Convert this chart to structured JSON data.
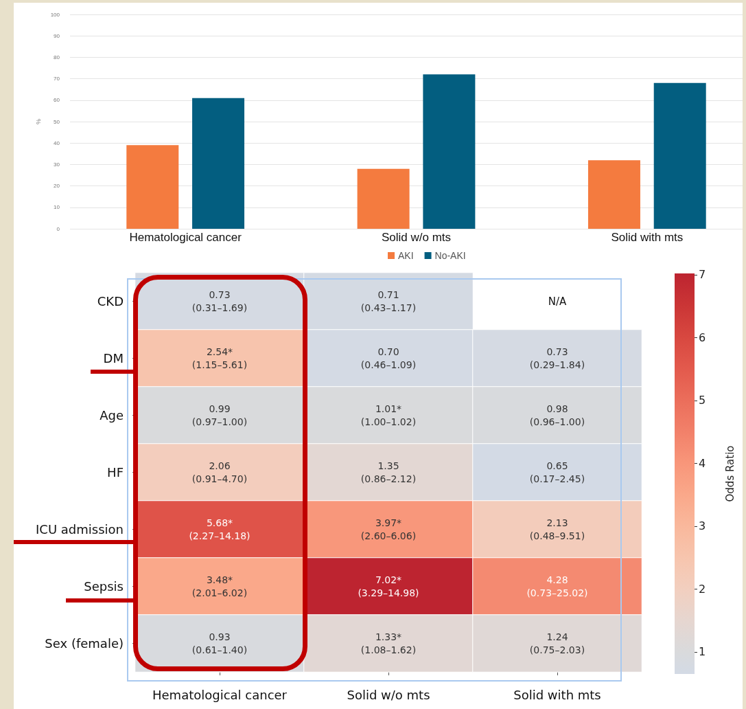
{
  "chart_data": [
    {
      "type": "bar",
      "ylabel": "%",
      "categories": [
        "Hematological cancer",
        "Solid w/o mts",
        "Solid with mts"
      ],
      "series": [
        {
          "name": "AKI",
          "color": "#f47b3f",
          "values": [
            39,
            28,
            32
          ]
        },
        {
          "name": "No-AKI",
          "color": "#035e80",
          "values": [
            61,
            72,
            68
          ]
        }
      ],
      "ylim": [
        0,
        100
      ],
      "yticks": [
        0,
        10,
        20,
        30,
        40,
        50,
        60,
        70,
        80,
        90,
        100
      ],
      "grid": "y",
      "legend": "bottom"
    },
    {
      "type": "heatmap",
      "clabel": "Odds Ratio",
      "categories": [
        "Hematological cancer",
        "Solid w/o mts",
        "Solid with mts"
      ],
      "y_categories": [
        "CKD",
        "DM",
        "Age",
        "HF",
        "ICU admission",
        "Sepsis",
        "Sex (female)"
      ],
      "cells": [
        [
          0.73,
          0.71,
          null
        ],
        [
          2.54,
          0.7,
          0.73
        ],
        [
          0.99,
          1.01,
          0.98
        ],
        [
          2.06,
          1.35,
          0.65
        ],
        [
          5.68,
          3.97,
          2.13
        ],
        [
          3.48,
          7.02,
          4.28
        ],
        [
          0.93,
          1.33,
          1.24
        ]
      ],
      "cell_labels": [
        [
          "0.73\n(0.31–1.69)",
          "0.71\n(0.43–1.17)",
          "N/A"
        ],
        [
          "2.54*\n(1.15–5.61)",
          "0.70\n(0.46–1.09)",
          "0.73\n(0.29–1.84)"
        ],
        [
          "0.99\n(0.97–1.00)",
          "1.01*\n(1.00–1.02)",
          "0.98\n(0.96–1.00)"
        ],
        [
          "2.06\n(0.91–4.70)",
          "1.35\n(0.86–2.12)",
          "0.65\n(0.17–2.45)"
        ],
        [
          "5.68*\n(2.27–14.18)",
          "3.97*\n(2.60–6.06)",
          "2.13\n(0.48–9.51)"
        ],
        [
          "3.48*\n(2.01–6.02)",
          "7.02*\n(3.29–14.98)",
          "4.28\n(0.73–25.02)"
        ],
        [
          "0.93\n(0.61–1.40)",
          "1.33*\n(1.08–1.62)",
          "1.24\n(0.75–2.03)"
        ]
      ],
      "clim": [
        0.65,
        7.02
      ],
      "cticks": [
        1,
        2,
        3,
        4,
        5,
        6,
        7
      ]
    }
  ]
}
